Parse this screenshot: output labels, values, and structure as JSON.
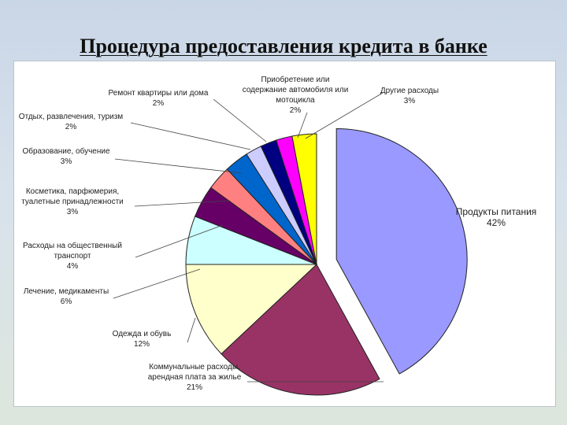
{
  "slide": {
    "title": "Процедура предоставления кредита в банке"
  },
  "chart_data": {
    "type": "pie",
    "title": "",
    "slices": [
      {
        "label": "Продукты питания",
        "value": 42,
        "color": "#9999ff",
        "exploded": true
      },
      {
        "label": "Коммунальные расходы, арендная плата за жилье",
        "value": 21,
        "color": "#993366"
      },
      {
        "label": "Одежда и обувь",
        "value": 12,
        "color": "#ffffcc"
      },
      {
        "label": "Лечение, медикаменты",
        "value": 6,
        "color": "#ccffff"
      },
      {
        "label": "Расходы на общественный транспорт",
        "value": 4,
        "color": "#660066"
      },
      {
        "label": "Косметика, парфюмерия, туалетные принадлежности",
        "value": 3,
        "color": "#ff8080"
      },
      {
        "label": "Образование, обучение",
        "value": 3,
        "color": "#0066cc"
      },
      {
        "label": "Отдых, развлечения, туризм",
        "value": 2,
        "color": "#ccccff"
      },
      {
        "label": "Ремонт квартиры или дома",
        "value": 2,
        "color": "#000080"
      },
      {
        "label": "Приобретение или содержание автомобиля или мотоцикла",
        "value": 2,
        "color": "#ff00ff"
      },
      {
        "label": "Другие расходы",
        "value": 3,
        "color": "#ffff00"
      }
    ],
    "labels": [
      {
        "lines": [
          "Продукты питания",
          "42%"
        ]
      },
      {
        "lines": [
          "Коммунальные расходы,",
          "арендная плата за жилье",
          "21%"
        ]
      },
      {
        "lines": [
          "Одежда и обувь",
          "12%"
        ]
      },
      {
        "lines": [
          "Лечение, медикаменты",
          "6%"
        ]
      },
      {
        "lines": [
          "Расходы на общественный",
          "транспорт",
          "4%"
        ]
      },
      {
        "lines": [
          "Косметика, парфюмерия,",
          "туалетные принадлежности",
          "3%"
        ]
      },
      {
        "lines": [
          "Образование, обучение",
          "3%"
        ]
      },
      {
        "lines": [
          "Отдых, развлечения, туризм",
          "2%"
        ]
      },
      {
        "lines": [
          "Ремонт квартиры или дома",
          "2%"
        ]
      },
      {
        "lines": [
          "Приобретение или",
          "содержание автомобиля или",
          "мотоцикла",
          "2%"
        ]
      },
      {
        "lines": [
          "Другие расходы",
          "3%"
        ]
      }
    ],
    "legend": "none"
  }
}
